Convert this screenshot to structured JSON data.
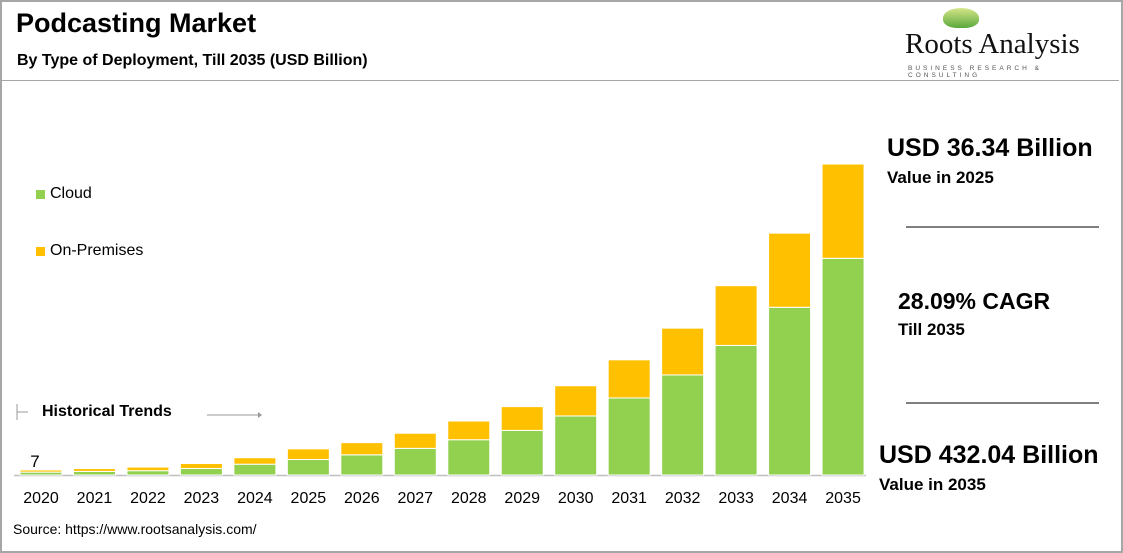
{
  "header": {
    "title": "Podcasting Market",
    "subtitle": "By Type of Deployment, Till 2035 (USD Billion)"
  },
  "logo": {
    "name": "Roots Analysis",
    "tagline": "BUSINESS RESEARCH & CONSULTING"
  },
  "stats": [
    {
      "value": "USD 36.34 Billion",
      "label": "Value in 2025"
    },
    {
      "value": "28.09% CAGR",
      "label": "Till 2035"
    },
    {
      "value": "USD 432.04 Billion",
      "label": "Value in 2035"
    }
  ],
  "annotation": {
    "historical": "Historical Trends"
  },
  "source": "Source: https://www.rootsanalysis.com/",
  "chart_data": {
    "type": "bar",
    "stacked": true,
    "categories": [
      "2020",
      "2021",
      "2022",
      "2023",
      "2024",
      "2025",
      "2026",
      "2027",
      "2028",
      "2029",
      "2030",
      "2031",
      "2032",
      "2033",
      "2034",
      "2035"
    ],
    "series": [
      {
        "name": "Cloud",
        "color": "#92d050",
        "values": [
          4,
          5,
          6,
          9,
          15,
          21.5,
          28,
          37,
          49,
          62,
          82,
          107,
          139,
          180,
          233,
          301
        ]
      },
      {
        "name": "On-Premises",
        "color": "#ffc000",
        "values": [
          3,
          4,
          5,
          7,
          9,
          14.84,
          17,
          21,
          26,
          33,
          42,
          53,
          65,
          83,
          103,
          131
        ]
      }
    ],
    "data_labels": [
      {
        "category": "2020",
        "text": "7"
      }
    ],
    "legend_position": "left",
    "grid": false,
    "ylim": [
      0,
      432.04
    ]
  }
}
